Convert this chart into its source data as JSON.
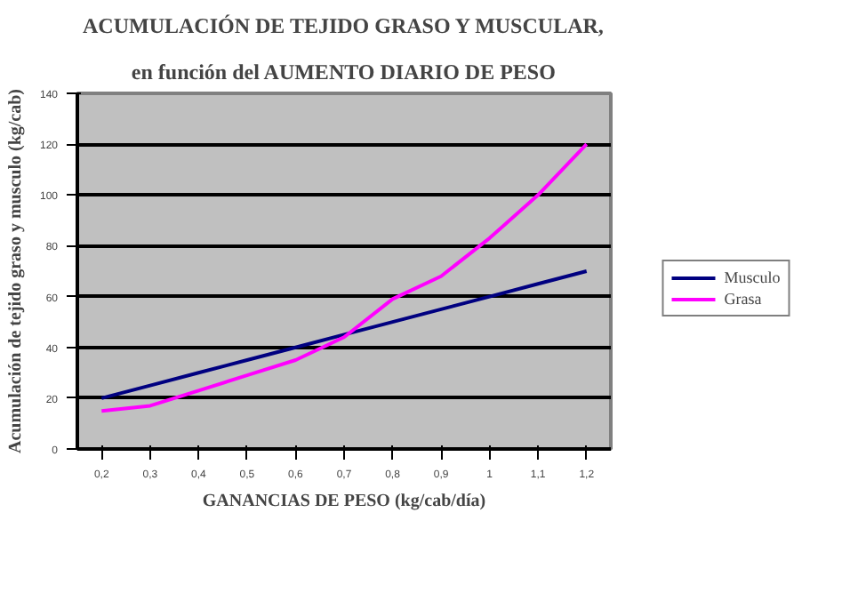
{
  "chart_data": {
    "type": "line",
    "title": "ACUMULACIÓN DE TEJIDO GRASO Y MUSCULAR,",
    "subtitle": "en función del AUMENTO DIARIO DE PESO",
    "xlabel": "GANANCIAS DE PESO (kg/cab/día)",
    "ylabel": "Acumulación de tejido graso y musculo (kg/cab)",
    "categories": [
      "0,2",
      "0,3",
      "0,4",
      "0,5",
      "0,6",
      "0,7",
      "0,8",
      "0,9",
      "1",
      "1,1",
      "1,2"
    ],
    "series": [
      {
        "name": "Musculo",
        "color": "#000080",
        "values": [
          20,
          25,
          30,
          35,
          40,
          45,
          50,
          55,
          60,
          65,
          70
        ]
      },
      {
        "name": "Grasa",
        "color": "#ff00ff",
        "values": [
          15,
          17,
          23,
          29,
          35,
          44,
          59,
          68,
          83,
          100,
          120
        ]
      }
    ],
    "ylim": [
      0,
      140
    ],
    "yticks": [
      0,
      20,
      40,
      60,
      80,
      100,
      120,
      140
    ],
    "grid": "y",
    "legend": "right",
    "marker": "none",
    "line_style": "solid"
  }
}
